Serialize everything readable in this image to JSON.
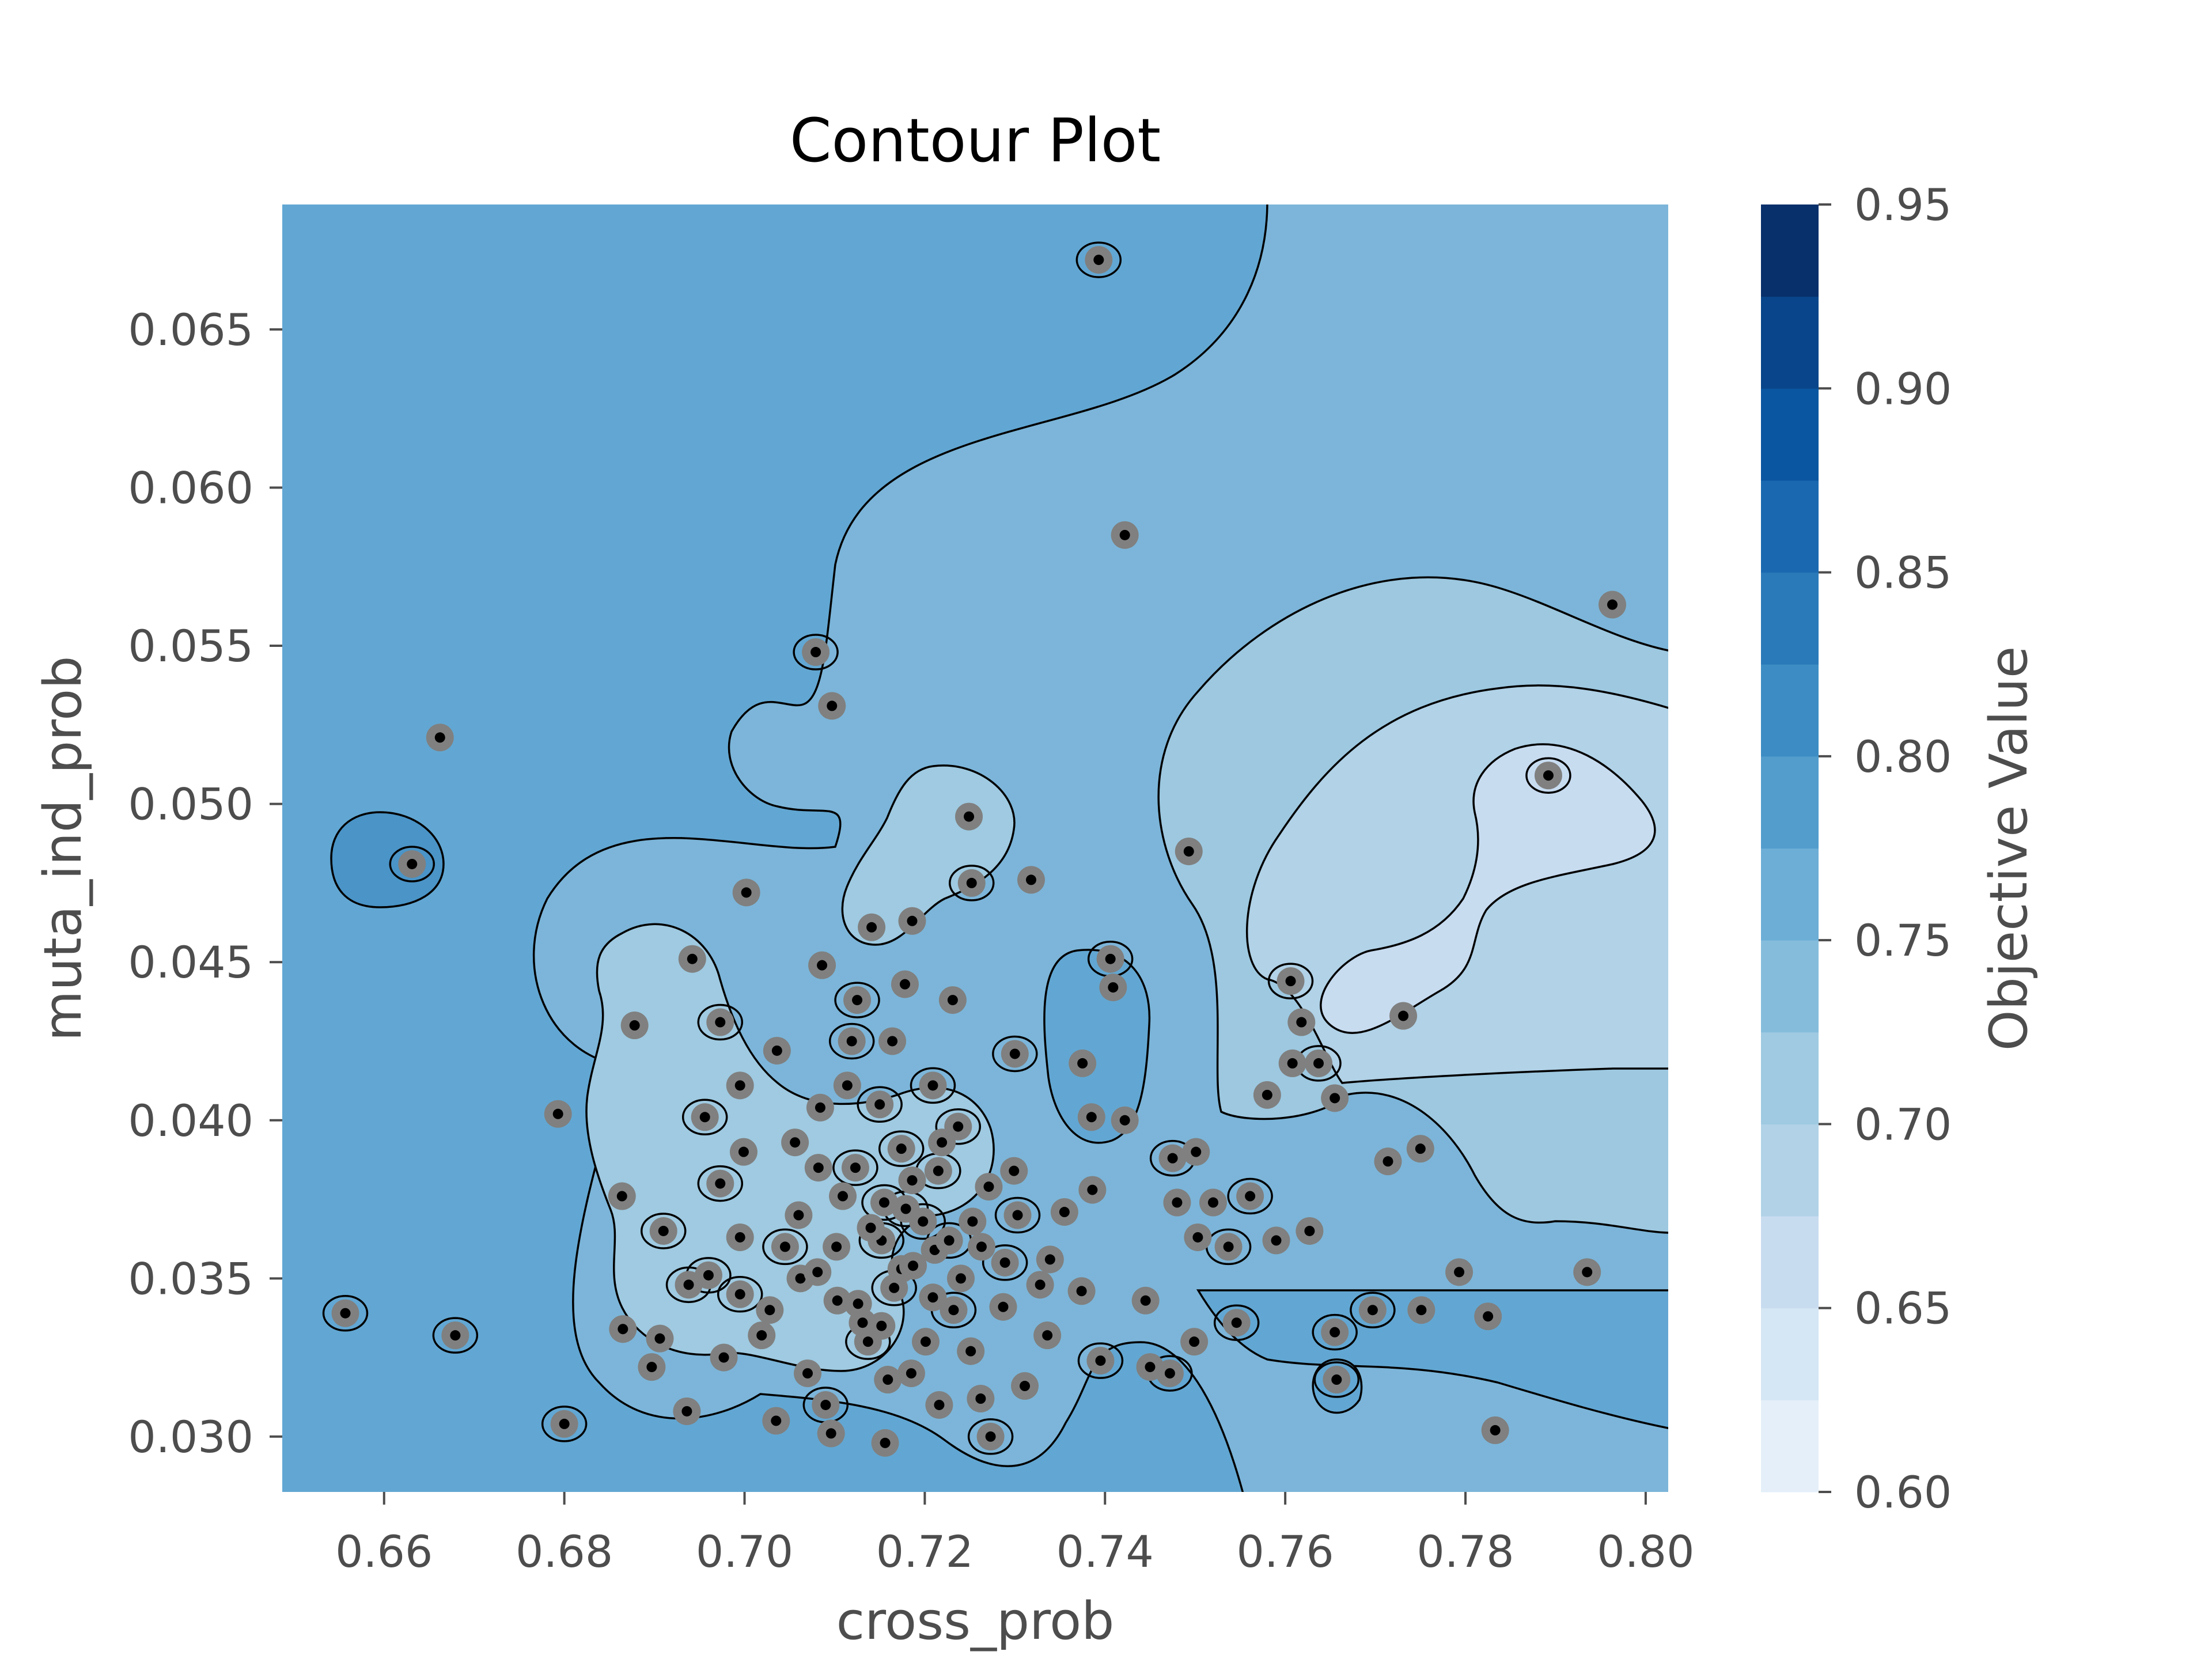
{
  "chart_data": {
    "type": "contour",
    "title": "Contour Plot",
    "xlabel": "cross_prob",
    "ylabel": "muta_ind_prob",
    "xlim": [
      0.6487,
      0.8025
    ],
    "ylim": [
      0.02825,
      0.06895
    ],
    "x_ticks": [
      0.66,
      0.68,
      0.7,
      0.72,
      0.74,
      0.76,
      0.78,
      0.8
    ],
    "x_tick_labels": [
      "0.66",
      "0.68",
      "0.70",
      "0.72",
      "0.74",
      "0.76",
      "0.78",
      "0.80"
    ],
    "y_ticks": [
      0.03,
      0.035,
      0.04,
      0.045,
      0.05,
      0.055,
      0.06,
      0.065
    ],
    "y_tick_labels": [
      "0.030",
      "0.035",
      "0.040",
      "0.045",
      "0.050",
      "0.055",
      "0.060",
      "0.065"
    ],
    "grid": false,
    "colorbar": {
      "label": "Objective Value",
      "min": 0.6,
      "max": 0.95,
      "ticks": [
        0.6,
        0.65,
        0.7,
        0.75,
        0.8,
        0.85,
        0.9,
        0.95
      ],
      "tick_labels": [
        "0.60",
        "0.65",
        "0.70",
        "0.75",
        "0.80",
        "0.85",
        "0.90",
        "0.95"
      ],
      "levels": [
        0.6,
        0.625,
        0.65,
        0.675,
        0.7,
        0.725,
        0.75,
        0.775,
        0.8,
        0.825,
        0.85,
        0.875,
        0.9,
        0.925,
        0.95
      ],
      "colors": [
        "#f1f7fd",
        "#e4eff9",
        "#d5e6f4",
        "#c8dcf0",
        "#b1d2e7",
        "#9fcae1",
        "#85bcdc",
        "#6caed6",
        "#529dcc",
        "#3d8dc4",
        "#2a7ab9",
        "#1a69b0",
        "#0b56a0",
        "#08458a",
        "#08306b"
      ]
    },
    "background_value": 0.787,
    "regions": [
      {
        "name": "upper-right-region",
        "level": 0.762
      },
      {
        "name": "right-middle-band",
        "level": 0.737
      },
      {
        "name": "right-high-band",
        "level": 0.712
      },
      {
        "name": "hourglass-region",
        "level": 0.687
      },
      {
        "name": "central-cluster-region",
        "level": 0.737
      },
      {
        "name": "left-dark-blob",
        "level": 0.812
      },
      {
        "name": "mid-dark-blob",
        "level": 0.787
      }
    ],
    "points": [
      [
        0.7393,
        0.0672
      ],
      [
        0.7422,
        0.0585
      ],
      [
        0.7963,
        0.0563
      ],
      [
        0.7079,
        0.0548
      ],
      [
        0.7097,
        0.0531
      ],
      [
        0.6662,
        0.0521
      ],
      [
        0.7892,
        0.0509
      ],
      [
        0.7249,
        0.0496
      ],
      [
        0.7493,
        0.0485
      ],
      [
        0.6631,
        0.0481
      ],
      [
        0.7318,
        0.0476
      ],
      [
        0.7002,
        0.0472
      ],
      [
        0.7252,
        0.0475
      ],
      [
        0.7186,
        0.0463
      ],
      [
        0.7141,
        0.0461
      ],
      [
        0.7406,
        0.0451
      ],
      [
        0.6942,
        0.0451
      ],
      [
        0.7086,
        0.0449
      ],
      [
        0.7606,
        0.0444
      ],
      [
        0.7409,
        0.0442
      ],
      [
        0.7178,
        0.0443
      ],
      [
        0.7125,
        0.0438
      ],
      [
        0.7231,
        0.0438
      ],
      [
        0.6878,
        0.043
      ],
      [
        0.6973,
        0.0431
      ],
      [
        0.7731,
        0.0433
      ],
      [
        0.7618,
        0.0431
      ],
      [
        0.7119,
        0.0425
      ],
      [
        0.7164,
        0.0425
      ],
      [
        0.7036,
        0.0422
      ],
      [
        0.73,
        0.0421
      ],
      [
        0.7375,
        0.0418
      ],
      [
        0.7608,
        0.0418
      ],
      [
        0.7637,
        0.0418
      ],
      [
        0.6995,
        0.0411
      ],
      [
        0.7114,
        0.0411
      ],
      [
        0.7209,
        0.0411
      ],
      [
        0.758,
        0.0408
      ],
      [
        0.7655,
        0.0407
      ],
      [
        0.715,
        0.0405
      ],
      [
        0.7084,
        0.0404
      ],
      [
        0.6793,
        0.0402
      ],
      [
        0.6956,
        0.0401
      ],
      [
        0.7385,
        0.0401
      ],
      [
        0.7422,
        0.04
      ],
      [
        0.7237,
        0.0398
      ],
      [
        0.7056,
        0.0393
      ],
      [
        0.6999,
        0.039
      ],
      [
        0.7174,
        0.0391
      ],
      [
        0.7219,
        0.0393
      ],
      [
        0.7501,
        0.039
      ],
      [
        0.7475,
        0.0388
      ],
      [
        0.775,
        0.0391
      ],
      [
        0.7714,
        0.0387
      ],
      [
        0.7123,
        0.0385
      ],
      [
        0.7299,
        0.0384
      ],
      [
        0.7271,
        0.0379
      ],
      [
        0.6973,
        0.038
      ],
      [
        0.7386,
        0.0378
      ],
      [
        0.6864,
        0.0376
      ],
      [
        0.7561,
        0.0376
      ],
      [
        0.752,
        0.0374
      ],
      [
        0.748,
        0.0374
      ],
      [
        0.7155,
        0.0374
      ],
      [
        0.7355,
        0.0371
      ],
      [
        0.706,
        0.037
      ],
      [
        0.7198,
        0.0368
      ],
      [
        0.7253,
        0.0368
      ],
      [
        0.7627,
        0.0365
      ],
      [
        0.691,
        0.0365
      ],
      [
        0.6995,
        0.0363
      ],
      [
        0.7503,
        0.0363
      ],
      [
        0.7537,
        0.036
      ],
      [
        0.759,
        0.0362
      ],
      [
        0.7102,
        0.036
      ],
      [
        0.7152,
        0.0362
      ],
      [
        0.7211,
        0.0359
      ],
      [
        0.7339,
        0.0356
      ],
      [
        0.7289,
        0.0355
      ],
      [
        0.7174,
        0.0353
      ],
      [
        0.7062,
        0.035
      ],
      [
        0.696,
        0.0351
      ],
      [
        0.7793,
        0.0352
      ],
      [
        0.7935,
        0.0352
      ],
      [
        0.6938,
        0.0348
      ],
      [
        0.7374,
        0.0346
      ],
      [
        0.7445,
        0.0343
      ],
      [
        0.6995,
        0.0345
      ],
      [
        0.7103,
        0.0343
      ],
      [
        0.7209,
        0.0344
      ],
      [
        0.7697,
        0.034
      ],
      [
        0.7751,
        0.034
      ],
      [
        0.7287,
        0.0341
      ],
      [
        0.7546,
        0.0336
      ],
      [
        0.7825,
        0.0338
      ],
      [
        0.6865,
        0.0334
      ],
      [
        0.7655,
        0.0333
      ],
      [
        0.7336,
        0.0332
      ],
      [
        0.7019,
        0.0332
      ],
      [
        0.6679,
        0.0332
      ],
      [
        0.6906,
        0.0331
      ],
      [
        0.7499,
        0.033
      ],
      [
        0.7137,
        0.033
      ],
      [
        0.7251,
        0.0327
      ],
      [
        0.6977,
        0.0325
      ],
      [
        0.7395,
        0.0324
      ],
      [
        0.6897,
        0.0322
      ],
      [
        0.745,
        0.0322
      ],
      [
        0.7472,
        0.032
      ],
      [
        0.707,
        0.032
      ],
      [
        0.7185,
        0.032
      ],
      [
        0.7657,
        0.0318
      ],
      [
        0.7311,
        0.0316
      ],
      [
        0.7262,
        0.0312
      ],
      [
        0.709,
        0.031
      ],
      [
        0.6936,
        0.0308
      ],
      [
        0.7035,
        0.0305
      ],
      [
        0.68,
        0.0304
      ],
      [
        0.7216,
        0.031
      ],
      [
        0.7096,
        0.0301
      ],
      [
        0.7273,
        0.03
      ],
      [
        0.7833,
        0.0302
      ],
      [
        0.7156,
        0.0298
      ],
      [
        0.6557,
        0.0339
      ],
      [
        0.7126,
        0.0342
      ],
      [
        0.7131,
        0.0336
      ],
      [
        0.7166,
        0.0347
      ],
      [
        0.7187,
        0.0354
      ],
      [
        0.714,
        0.0366
      ],
      [
        0.7179,
        0.0372
      ],
      [
        0.7109,
        0.0376
      ],
      [
        0.7186,
        0.0381
      ],
      [
        0.7215,
        0.0384
      ],
      [
        0.7081,
        0.0352
      ],
      [
        0.724,
        0.035
      ],
      [
        0.7232,
        0.034
      ],
      [
        0.7201,
        0.033
      ],
      [
        0.7159,
        0.0318
      ],
      [
        0.7045,
        0.036
      ],
      [
        0.7028,
        0.034
      ],
      [
        0.7263,
        0.036
      ],
      [
        0.7303,
        0.037
      ],
      [
        0.7328,
        0.0348
      ],
      [
        0.7082,
        0.0385
      ],
      [
        0.7227,
        0.0362
      ],
      [
        0.7152,
        0.0335
      ]
    ]
  }
}
